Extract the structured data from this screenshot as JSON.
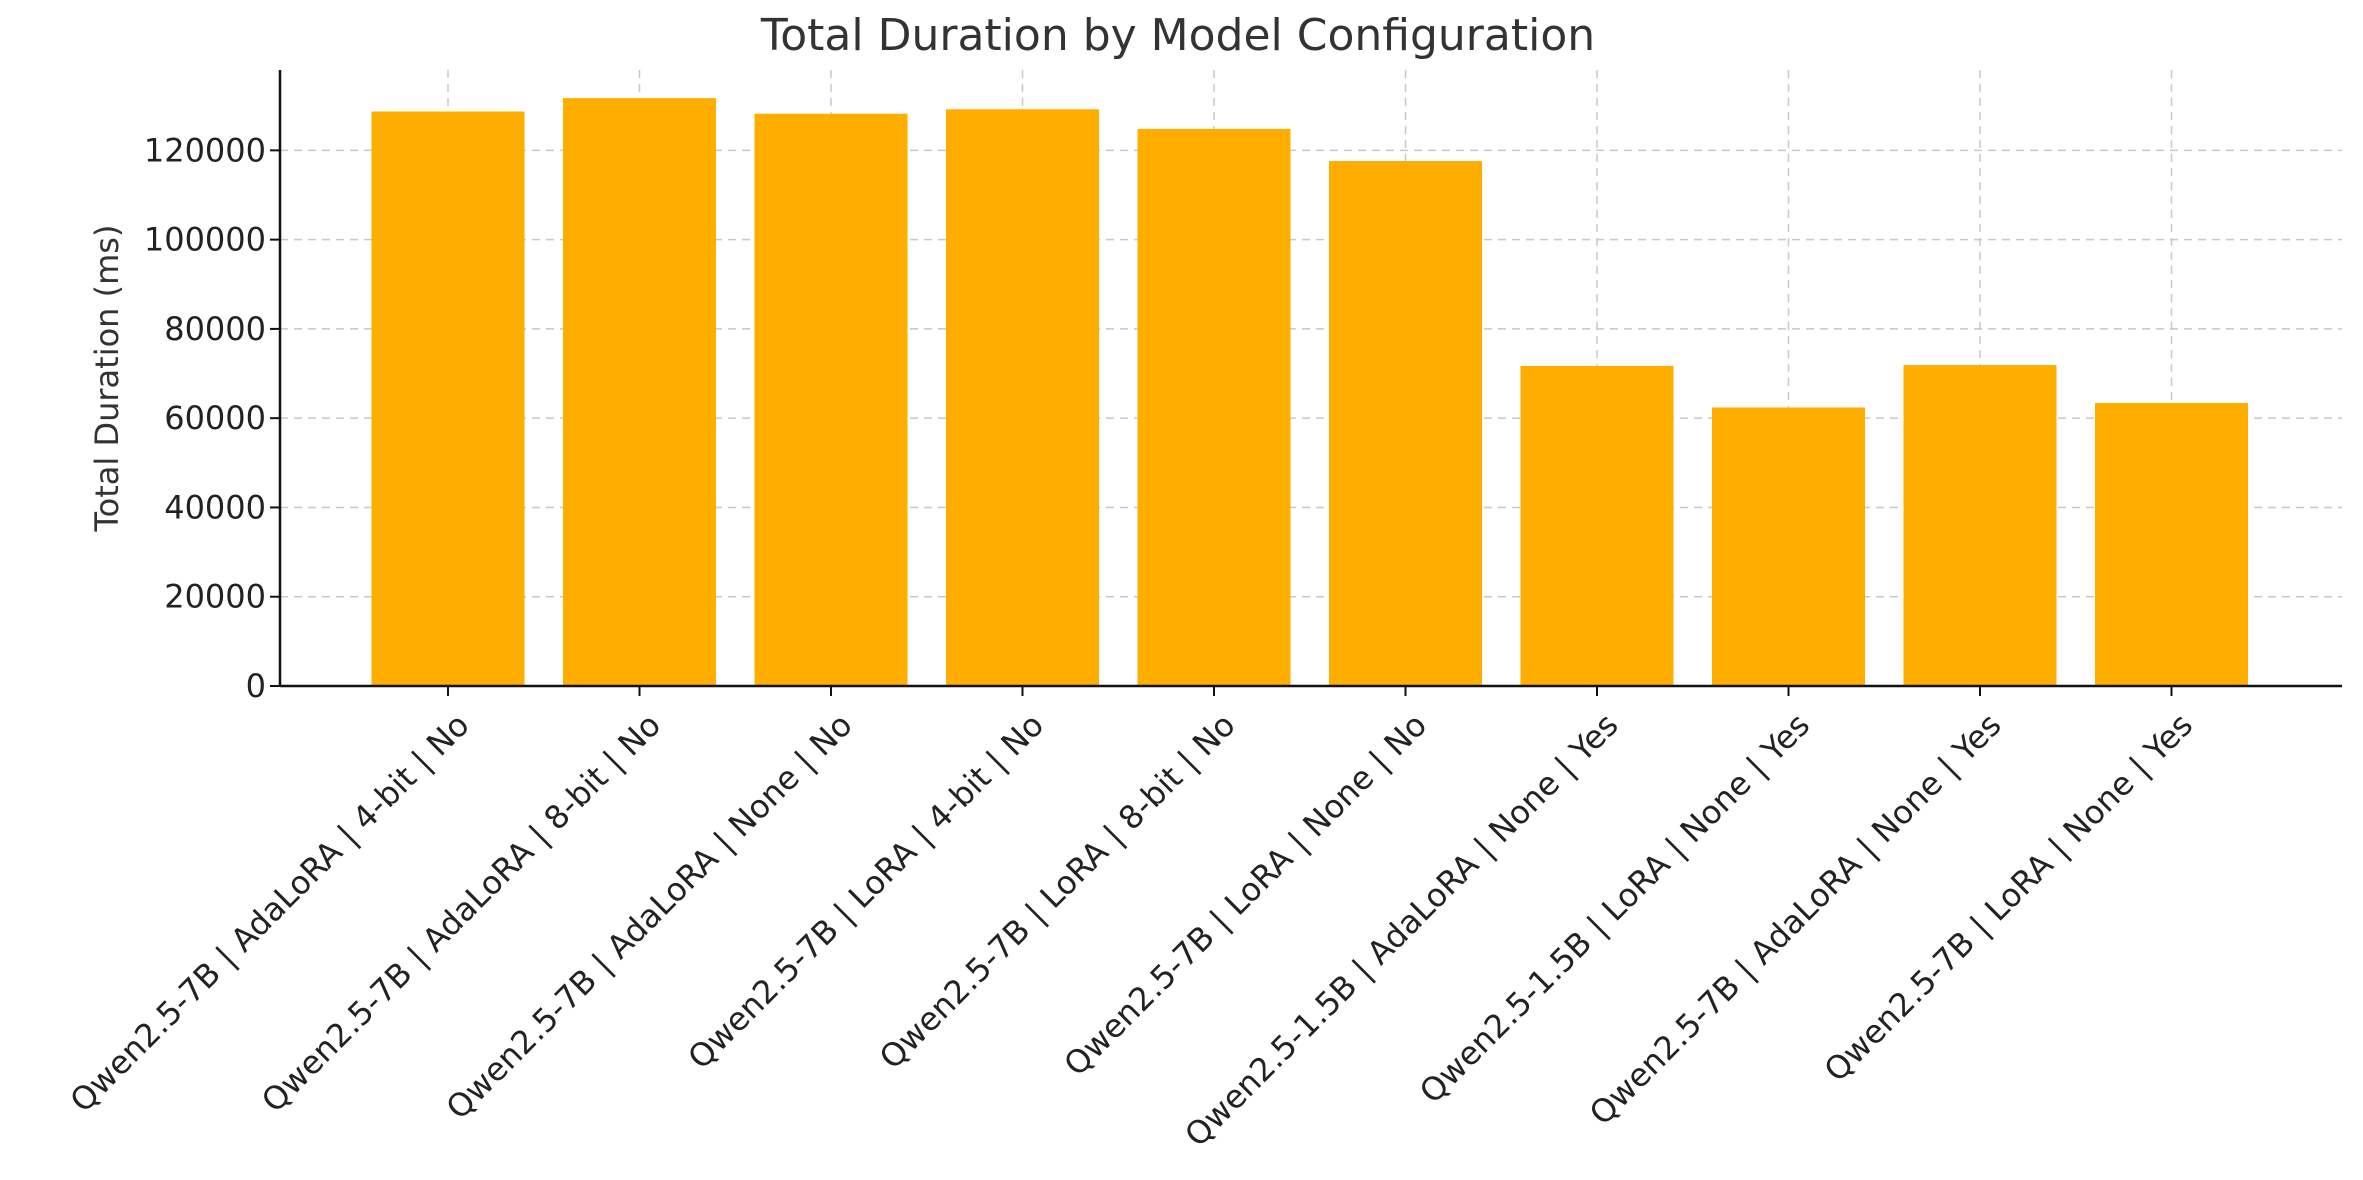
{
  "chart_data": {
    "type": "bar",
    "title": "Total Duration by Model Configuration",
    "xlabel": "",
    "ylabel": "Total Duration (ms)",
    "ylim": [
      0,
      138000
    ],
    "yticks": [
      0,
      20000,
      40000,
      60000,
      80000,
      100000,
      120000
    ],
    "ytick_labels": [
      "0",
      "20000",
      "40000",
      "60000",
      "80000",
      "100000",
      "120000"
    ],
    "grid": true,
    "bar_color": "#FFAE00",
    "categories": [
      "Qwen2.5-7B | AdaLoRA | 4-bit | No",
      "Qwen2.5-7B | AdaLoRA | 8-bit | No",
      "Qwen2.5-7B | AdaLoRA | None | No",
      "Qwen2.5-7B | LoRA | 4-bit | No",
      "Qwen2.5-7B | LoRA | 8-bit | No",
      "Qwen2.5-7B | LoRA | None | No",
      "Qwen2.5-1.5B | AdaLoRA | None | Yes",
      "Qwen2.5-1.5B | LoRA | None | Yes",
      "Qwen2.5-7B | AdaLoRA | None | Yes",
      "Qwen2.5-7B | LoRA | None | Yes"
    ],
    "values": [
      128700,
      131700,
      128200,
      129200,
      124800,
      117600,
      71700,
      62400,
      71900,
      63400
    ]
  }
}
